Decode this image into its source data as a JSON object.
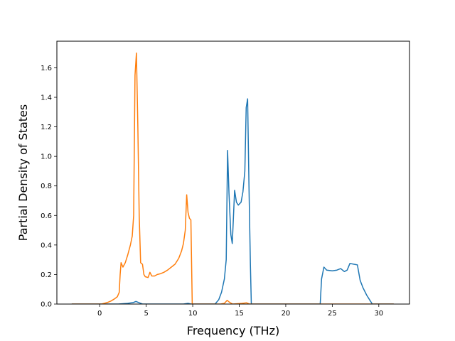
{
  "chart_data": {
    "type": "line",
    "title": "",
    "xlabel": "Frequency (THz)",
    "ylabel": "Partial Density of States",
    "xlim": [
      -4.6,
      33.3
    ],
    "ylim": [
      0.0,
      1.78
    ],
    "xticks": [
      0,
      5,
      10,
      15,
      20,
      25,
      30
    ],
    "xtick_labels": [
      "0",
      "5",
      "10",
      "15",
      "20",
      "25",
      "30"
    ],
    "yticks": [
      0.0,
      0.2,
      0.4,
      0.6,
      0.8,
      1.0,
      1.2,
      1.4,
      1.6
    ],
    "ytick_labels": [
      "0.0",
      "0.2",
      "0.4",
      "0.6",
      "0.8",
      "1.0",
      "1.2",
      "1.4",
      "1.6"
    ],
    "grid": false,
    "legend": null,
    "series": [
      {
        "color": "#1f77b4",
        "points": [
          [
            -3.0,
            0.0
          ],
          [
            2.0,
            0.0
          ],
          [
            3.0,
            0.005
          ],
          [
            3.6,
            0.01
          ],
          [
            3.9,
            0.018
          ],
          [
            4.2,
            0.01
          ],
          [
            4.6,
            0.0
          ],
          [
            9.0,
            0.0
          ],
          [
            9.5,
            0.005
          ],
          [
            9.8,
            0.0
          ],
          [
            12.4,
            0.0
          ],
          [
            12.8,
            0.03
          ],
          [
            13.1,
            0.08
          ],
          [
            13.4,
            0.17
          ],
          [
            13.6,
            0.3
          ],
          [
            13.75,
            1.04
          ],
          [
            13.9,
            0.75
          ],
          [
            14.1,
            0.47
          ],
          [
            14.25,
            0.41
          ],
          [
            14.35,
            0.55
          ],
          [
            14.5,
            0.77
          ],
          [
            14.7,
            0.69
          ],
          [
            14.9,
            0.67
          ],
          [
            15.2,
            0.69
          ],
          [
            15.4,
            0.76
          ],
          [
            15.6,
            0.9
          ],
          [
            15.75,
            1.33
          ],
          [
            15.9,
            1.39
          ],
          [
            16.05,
            0.8
          ],
          [
            16.2,
            0.27
          ],
          [
            16.3,
            0.0
          ],
          [
            23.7,
            0.0
          ],
          [
            23.85,
            0.17
          ],
          [
            24.1,
            0.25
          ],
          [
            24.4,
            0.23
          ],
          [
            25.0,
            0.225
          ],
          [
            25.5,
            0.23
          ],
          [
            25.9,
            0.24
          ],
          [
            26.3,
            0.22
          ],
          [
            26.6,
            0.23
          ],
          [
            26.9,
            0.275
          ],
          [
            27.3,
            0.27
          ],
          [
            27.7,
            0.265
          ],
          [
            28.0,
            0.16
          ],
          [
            28.3,
            0.11
          ],
          [
            28.7,
            0.06
          ],
          [
            29.1,
            0.02
          ],
          [
            29.3,
            0.0
          ],
          [
            31.6,
            0.0
          ]
        ]
      },
      {
        "color": "#ff7f0e",
        "points": [
          [
            -3.0,
            0.0
          ],
          [
            0.2,
            0.0
          ],
          [
            0.8,
            0.01
          ],
          [
            1.2,
            0.02
          ],
          [
            1.6,
            0.035
          ],
          [
            1.9,
            0.05
          ],
          [
            2.1,
            0.08
          ],
          [
            2.2,
            0.2
          ],
          [
            2.3,
            0.28
          ],
          [
            2.5,
            0.25
          ],
          [
            2.75,
            0.28
          ],
          [
            3.0,
            0.33
          ],
          [
            3.3,
            0.4
          ],
          [
            3.5,
            0.46
          ],
          [
            3.65,
            0.6
          ],
          [
            3.8,
            1.55
          ],
          [
            3.95,
            1.7
          ],
          [
            4.1,
            1.2
          ],
          [
            4.25,
            0.6
          ],
          [
            4.4,
            0.28
          ],
          [
            4.6,
            0.27
          ],
          [
            4.75,
            0.2
          ],
          [
            4.9,
            0.185
          ],
          [
            5.2,
            0.18
          ],
          [
            5.4,
            0.215
          ],
          [
            5.6,
            0.19
          ],
          [
            5.9,
            0.19
          ],
          [
            6.2,
            0.2
          ],
          [
            6.5,
            0.205
          ],
          [
            6.9,
            0.215
          ],
          [
            7.3,
            0.23
          ],
          [
            7.7,
            0.25
          ],
          [
            8.1,
            0.27
          ],
          [
            8.5,
            0.31
          ],
          [
            8.8,
            0.36
          ],
          [
            9.0,
            0.41
          ],
          [
            9.2,
            0.5
          ],
          [
            9.35,
            0.74
          ],
          [
            9.5,
            0.62
          ],
          [
            9.65,
            0.58
          ],
          [
            9.8,
            0.57
          ],
          [
            9.95,
            0.0
          ],
          [
            13.0,
            0.0
          ],
          [
            13.4,
            0.005
          ],
          [
            13.7,
            0.025
          ],
          [
            14.0,
            0.01
          ],
          [
            14.3,
            0.0
          ],
          [
            15.3,
            0.005
          ],
          [
            15.8,
            0.008
          ],
          [
            16.1,
            0.0
          ],
          [
            31.6,
            0.0
          ]
        ]
      }
    ]
  }
}
